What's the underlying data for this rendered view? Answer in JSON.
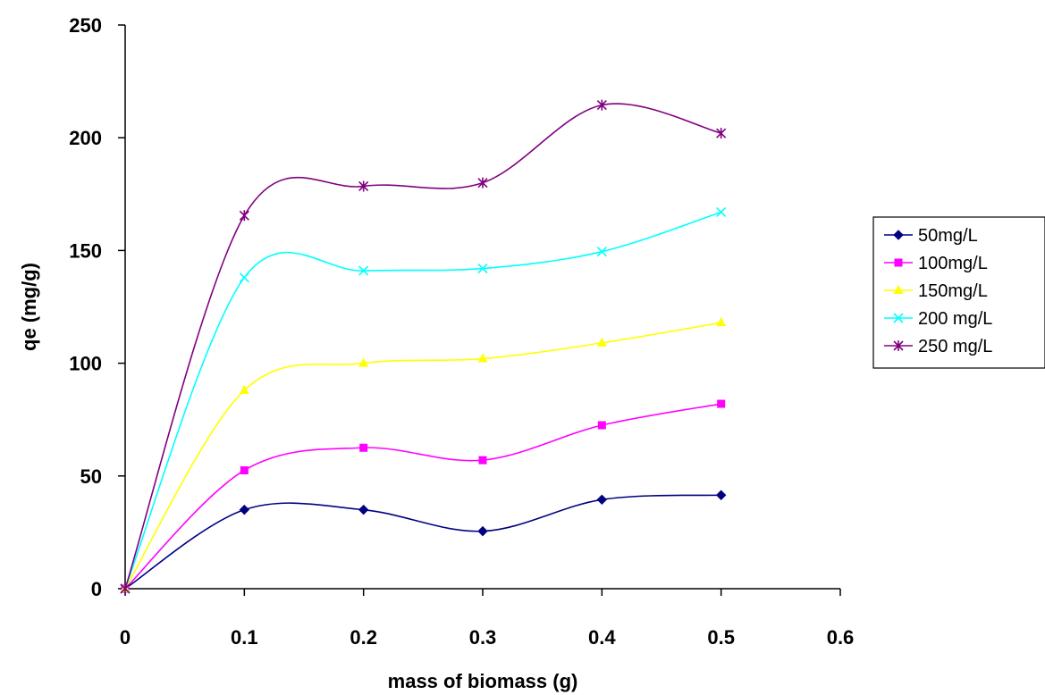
{
  "chart_data": {
    "type": "line",
    "xlabel": "mass of biomass (g)",
    "ylabel": "qe (mg/g)",
    "xlim": [
      0,
      0.6
    ],
    "ylim": [
      0,
      250
    ],
    "xticks": [
      "0",
      "0.1",
      "0.2",
      "0.3",
      "0.4",
      "0.5",
      "0.6"
    ],
    "yticks": [
      "0",
      "50",
      "100",
      "150",
      "200",
      "250"
    ],
    "grid": false,
    "smooth": true,
    "legend_position": "right",
    "x": [
      0,
      0.1,
      0.2,
      0.3,
      0.4,
      0.5
    ],
    "series": [
      {
        "name": "50mg/L",
        "values": [
          0,
          35,
          35,
          25.5,
          39.5,
          41.5
        ],
        "color": "#000080",
        "marker": "diamond"
      },
      {
        "name": "100mg/L",
        "values": [
          0,
          52.5,
          62.5,
          57,
          72.5,
          82
        ],
        "color": "#FF00FF",
        "marker": "square"
      },
      {
        "name": "150mg/L",
        "values": [
          0,
          88,
          100,
          102,
          109,
          118
        ],
        "color": "#FFFF00",
        "marker": "triangle"
      },
      {
        "name": "200 mg/L",
        "values": [
          0,
          138,
          141,
          142,
          149.5,
          167
        ],
        "color": "#00FFFF",
        "marker": "x"
      },
      {
        "name": "250 mg/L",
        "values": [
          0,
          165.5,
          178.5,
          180,
          214.5,
          202
        ],
        "color": "#800080",
        "marker": "star"
      }
    ]
  }
}
